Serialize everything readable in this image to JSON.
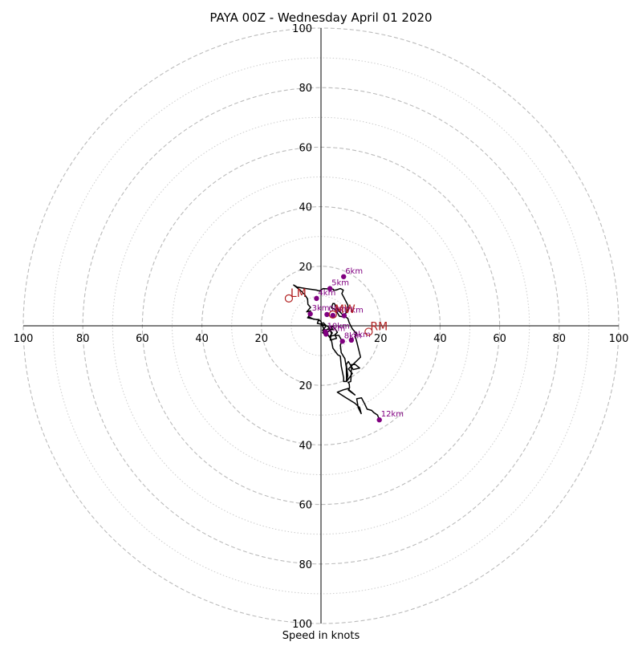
{
  "chart_data": {
    "type": "hodograph",
    "title": "PAYA 00Z - Wednesday April 01 2020",
    "xlabel": "Speed in knots",
    "ring_max": 100,
    "ring_step": 20,
    "ticks": {
      "x_left": [
        "100",
        "80",
        "60",
        "40",
        "20"
      ],
      "x_right": [
        "20",
        "40",
        "60",
        "80",
        "100"
      ],
      "y_up": [
        "20",
        "40",
        "60",
        "80",
        "100"
      ],
      "y_down": [
        "20",
        "40",
        "60",
        "80",
        "100"
      ]
    },
    "colors": {
      "trace": "#000000",
      "height_marker": "#800080",
      "motion_marker": "#b22222",
      "grid": "#bbbbbb"
    },
    "trace_uv": [
      [
        -4.2,
        3.1
      ],
      [
        -4.5,
        2.7
      ],
      [
        -1.0,
        2.0
      ],
      [
        0.0,
        1.5
      ],
      [
        0.2,
        0.8
      ],
      [
        0.8,
        1.0
      ],
      [
        1.8,
        0.0
      ],
      [
        0.5,
        -1.5
      ],
      [
        1.5,
        -3.0
      ],
      [
        0.5,
        -2.3
      ],
      [
        1.5,
        -1.5
      ],
      [
        2.5,
        -1.0
      ],
      [
        3.8,
        -2.4
      ],
      [
        3.0,
        -3.5
      ],
      [
        4.5,
        -3.2
      ],
      [
        6.0,
        -3.2
      ],
      [
        7.0,
        -5.0
      ],
      [
        6.5,
        -6.5
      ],
      [
        6.8,
        -9.0
      ],
      [
        8.0,
        -11.0
      ],
      [
        8.5,
        -13.8
      ],
      [
        8.6,
        -18.7
      ],
      [
        10.5,
        -16.0
      ],
      [
        9.2,
        -14.5
      ],
      [
        13.3,
        -10.5
      ],
      [
        12.0,
        -5.3
      ],
      [
        11.5,
        -3.6
      ],
      [
        11.8,
        -2.5
      ],
      [
        10.5,
        -1.0
      ],
      [
        9.5,
        1.0
      ],
      [
        9.0,
        2.5
      ],
      [
        7.5,
        3.5
      ],
      [
        6.0,
        5.0
      ],
      [
        5.0,
        6.5
      ],
      [
        4.5,
        7.5
      ],
      [
        4.0,
        7.5
      ],
      [
        3.5,
        6.0
      ],
      [
        4.8,
        5.5
      ],
      [
        6.2,
        3.2
      ],
      [
        7.8,
        3.0
      ],
      [
        8.5,
        4.6
      ],
      [
        9.0,
        5.5
      ],
      [
        9.0,
        7.0
      ],
      [
        7.7,
        9.5
      ],
      [
        7.0,
        10.8
      ],
      [
        7.5,
        12.0
      ],
      [
        6.5,
        12.5
      ],
      [
        5.0,
        12.0
      ],
      [
        4.2,
        12.0
      ],
      [
        4.1,
        12.3
      ],
      [
        2.4,
        12.4
      ],
      [
        0.7,
        12.5
      ],
      [
        -0.5,
        11.7
      ],
      [
        -1.5,
        12.0
      ],
      [
        -5.0,
        12.5
      ],
      [
        -8.0,
        13.0
      ],
      [
        -9.2,
        13.7
      ],
      [
        -7.0,
        12.0
      ],
      [
        -5.5,
        10.5
      ],
      [
        -4.5,
        9.0
      ],
      [
        -4.4,
        7.2
      ],
      [
        -3.5,
        6.2
      ],
      [
        -4.8,
        4.7
      ],
      [
        -3.5,
        5.0
      ],
      [
        -4.2,
        3.1
      ],
      [
        -2.5,
        2.2
      ],
      [
        -0.6,
        2.1
      ],
      [
        -1.0,
        1.5
      ],
      [
        -1.2,
        0.8
      ],
      [
        0.3,
        0.5
      ],
      [
        0.9,
        -1.0
      ],
      [
        1.7,
        -1.5
      ],
      [
        2.2,
        -2.1
      ],
      [
        3.1,
        -1.5
      ],
      [
        3.5,
        -2.5
      ],
      [
        3.1,
        -4.8
      ],
      [
        5.2,
        -4.2
      ],
      [
        4.7,
        -3.0
      ],
      [
        5.5,
        -2.2
      ],
      [
        4.8,
        -1.1
      ],
      [
        4.2,
        -0.4
      ],
      [
        3.3,
        -0.2
      ],
      [
        4.0,
        -1.3
      ],
      [
        3.2,
        -1.2
      ],
      [
        2.3,
        -0.2
      ],
      [
        0.2,
        0.5
      ],
      [
        1.0,
        -1.0
      ],
      [
        1.8,
        -2.2
      ],
      [
        3.5,
        -4.8
      ],
      [
        4.0,
        -7.5
      ],
      [
        5.6,
        -9.7
      ],
      [
        6.5,
        -10.2
      ],
      [
        6.8,
        -13.5
      ],
      [
        7.6,
        -17.5
      ],
      [
        7.6,
        -18.7
      ],
      [
        8.5,
        -18.7
      ],
      [
        9.0,
        -16.8
      ],
      [
        8.5,
        -13.0
      ],
      [
        9.2,
        -12.0
      ],
      [
        10.8,
        -14.7
      ],
      [
        13.0,
        -14.2
      ],
      [
        11.5,
        -13.0
      ],
      [
        10.3,
        -13.0
      ],
      [
        10.0,
        -18.7
      ],
      [
        9.1,
        -19.0
      ],
      [
        9.5,
        -19.5
      ],
      [
        9.6,
        -20.8
      ],
      [
        9.2,
        -21.6
      ],
      [
        11.4,
        -23.2
      ],
      [
        9.4,
        -21.5
      ],
      [
        9.4,
        -21.0
      ],
      [
        7.5,
        -21.5
      ],
      [
        5.5,
        -22.3
      ],
      [
        8.0,
        -23.9
      ],
      [
        11.4,
        -26.0
      ],
      [
        13.0,
        -27.5
      ],
      [
        13.5,
        -29.5
      ],
      [
        12.5,
        -27.5
      ],
      [
        12.0,
        -24.5
      ],
      [
        13.6,
        -24.2
      ],
      [
        14.8,
        -26.5
      ],
      [
        15.5,
        -28.0
      ],
      [
        17.0,
        -28.4
      ],
      [
        17.8,
        -29.2
      ],
      [
        19.0,
        -30.0
      ],
      [
        19.6,
        -31.6
      ]
    ],
    "height_markers": [
      {
        "label": "0km",
        "u": 2.0,
        "v": 3.8
      },
      {
        "label": "1km",
        "u": 4.0,
        "v": 3.5
      },
      {
        "label": "2km",
        "u": 1.7,
        "v": -2.8
      },
      {
        "label": "3km",
        "u": -3.6,
        "v": 4.0
      },
      {
        "label": "4km",
        "u": -1.5,
        "v": 9.2
      },
      {
        "label": "5km",
        "u": 3.0,
        "v": 12.5
      },
      {
        "label": "6km",
        "u": 7.6,
        "v": 16.5
      },
      {
        "label": "7km",
        "u": 7.8,
        "v": 3.4
      },
      {
        "label": "8km",
        "u": 7.2,
        "v": -5.2
      },
      {
        "label": "9km",
        "u": 10.2,
        "v": -4.8
      },
      {
        "label": "10km",
        "u": 1.5,
        "v": -2.0
      },
      {
        "label": "12km",
        "u": 19.6,
        "v": -31.6
      }
    ],
    "motion_markers": [
      {
        "label": "LM",
        "u": -10.8,
        "v": 9.2
      },
      {
        "label": "MW",
        "u": 4.0,
        "v": 3.8
      },
      {
        "label": "RM",
        "u": 16.0,
        "v": -2.0
      }
    ]
  }
}
